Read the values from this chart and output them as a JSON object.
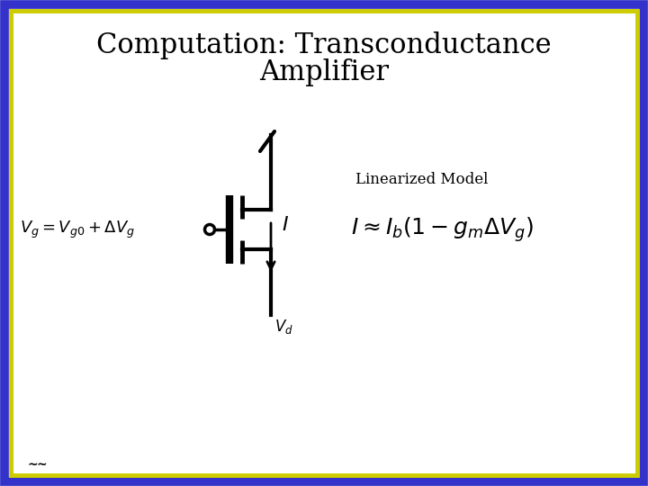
{
  "title_line1": "Computation: Transconductance",
  "title_line2": "Amplifier",
  "title_fontsize": 22,
  "bg_color": "#ffffff",
  "border_outer_color": "#3333cc",
  "border_inner_color": "#cccc00",
  "text_color": "#000000",
  "linearized_label": "Linearized Model",
  "eq_left": "$V_g = V_{g0} + \\Delta V_g$",
  "eq_right": "$I \\approx I_b(1 - g_m \\Delta V_g)$",
  "label_I": "$\\mathit{I}$",
  "label_Vd": "$V_d$"
}
